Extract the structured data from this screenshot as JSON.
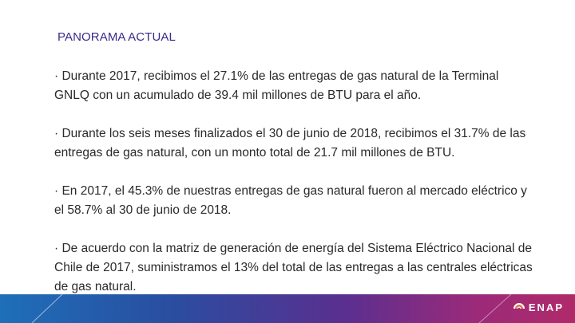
{
  "slide": {
    "title": "PANORAMA ACTUAL",
    "paragraphs": [
      "· Durante 2017, recibimos el 27.1% de las entregas de gas natural de la Terminal GNLQ con un acumulado de 39.4 mil millones de BTU para el año.",
      "· Durante los seis meses finalizados el 30 de junio de 2018, recibimos el 31.7% de las entregas de gas natural, con un monto total de 21.7 mil millones de BTU.",
      "· En 2017, el 45.3% de nuestras entregas de gas natural fueron al mercado eléctrico y el 58.7% al 30 de junio de 2018.",
      "· De acuerdo con la matriz de generación de energía del Sistema Eléctrico Nacional de Chile de 2017, suministramos el 13% del total de las entregas a las centrales eléctricas de gas natural."
    ]
  },
  "footer": {
    "logo_text": "ENAP",
    "logo_icon": "enap-flame-icon",
    "colors": {
      "start": "#1e6fb8",
      "mid": "#5a2f8f",
      "end": "#b02a6a"
    }
  },
  "colors": {
    "title": "#3b2a8a",
    "body_text": "#2a2a2a",
    "background": "#ffffff"
  }
}
